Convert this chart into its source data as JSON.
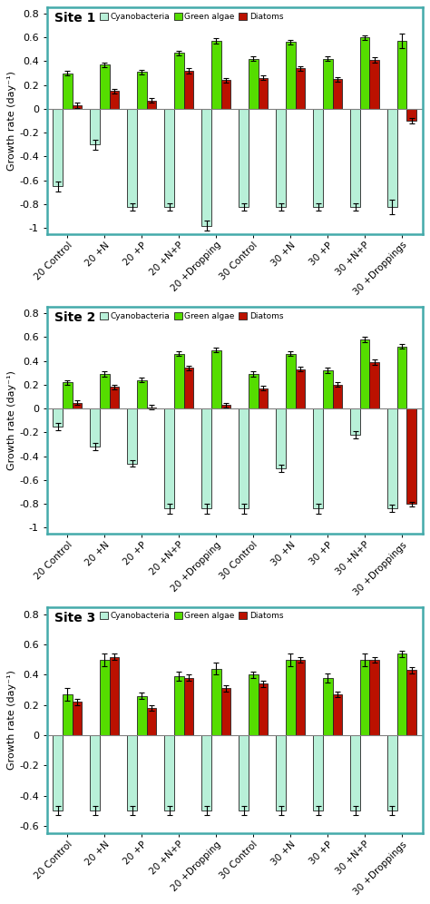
{
  "categories": [
    "20 Control",
    "20 +N",
    "20 +P",
    "20 +N+P",
    "20 +Dropping",
    "30 Control",
    "30 +N",
    "30 +P",
    "30 +N+P",
    "30 +Droppings"
  ],
  "sites": [
    "Site 1",
    "Site 2",
    "Site 3"
  ],
  "colors": {
    "cyano": "#b8f0d8",
    "green": "#55dd00",
    "diatom": "#bb1100"
  },
  "site1": {
    "cyano": [
      -0.65,
      -0.3,
      -0.82,
      -0.82,
      -0.98,
      -0.82,
      -0.82,
      -0.82,
      -0.82,
      -0.82
    ],
    "green": [
      0.3,
      0.37,
      0.31,
      0.47,
      0.57,
      0.42,
      0.56,
      0.42,
      0.6,
      0.57
    ],
    "diatom": [
      0.03,
      0.15,
      0.07,
      0.32,
      0.24,
      0.26,
      0.34,
      0.25,
      0.41,
      -0.1
    ],
    "cyano_err": [
      0.04,
      0.04,
      0.03,
      0.03,
      0.04,
      0.03,
      0.03,
      0.03,
      0.03,
      0.06
    ],
    "green_err": [
      0.02,
      0.02,
      0.02,
      0.02,
      0.02,
      0.02,
      0.02,
      0.02,
      0.02,
      0.06
    ],
    "diatom_err": [
      0.02,
      0.02,
      0.02,
      0.02,
      0.02,
      0.02,
      0.02,
      0.02,
      0.02,
      0.02
    ],
    "ylim": [
      -1.05,
      0.85
    ],
    "yticks": [
      -1.0,
      -0.8,
      -0.6,
      -0.4,
      -0.2,
      0.0,
      0.2,
      0.4,
      0.6,
      0.8
    ]
  },
  "site2": {
    "cyano": [
      -0.15,
      -0.32,
      -0.46,
      -0.84,
      -0.84,
      -0.84,
      -0.5,
      -0.84,
      -0.22,
      -0.84
    ],
    "green": [
      0.22,
      0.29,
      0.24,
      0.46,
      0.49,
      0.29,
      0.46,
      0.32,
      0.58,
      0.52
    ],
    "diatom": [
      0.05,
      0.18,
      0.01,
      0.34,
      0.03,
      0.17,
      0.33,
      0.2,
      0.39,
      -0.8
    ],
    "cyano_err": [
      0.03,
      0.03,
      0.03,
      0.04,
      0.04,
      0.04,
      0.03,
      0.04,
      0.03,
      0.03
    ],
    "green_err": [
      0.02,
      0.02,
      0.02,
      0.02,
      0.02,
      0.02,
      0.02,
      0.02,
      0.02,
      0.02
    ],
    "diatom_err": [
      0.02,
      0.02,
      0.02,
      0.02,
      0.02,
      0.02,
      0.02,
      0.02,
      0.02,
      0.02
    ],
    "ylim": [
      -1.05,
      0.85
    ],
    "yticks": [
      -1.0,
      -0.8,
      -0.6,
      -0.4,
      -0.2,
      0.0,
      0.2,
      0.4,
      0.6,
      0.8
    ]
  },
  "site3": {
    "cyano": [
      -0.5,
      -0.5,
      -0.5,
      -0.5,
      -0.5,
      -0.5,
      -0.5,
      -0.5,
      -0.5,
      -0.5
    ],
    "green": [
      0.27,
      0.5,
      0.26,
      0.39,
      0.44,
      0.4,
      0.5,
      0.38,
      0.5,
      0.54
    ],
    "diatom": [
      0.22,
      0.52,
      0.18,
      0.38,
      0.31,
      0.34,
      0.5,
      0.27,
      0.5,
      0.43
    ],
    "cyano_err": [
      0.03,
      0.03,
      0.03,
      0.03,
      0.03,
      0.03,
      0.03,
      0.03,
      0.03,
      0.03
    ],
    "green_err": [
      0.04,
      0.04,
      0.02,
      0.03,
      0.04,
      0.02,
      0.04,
      0.03,
      0.04,
      0.02
    ],
    "diatom_err": [
      0.02,
      0.02,
      0.02,
      0.02,
      0.02,
      0.02,
      0.02,
      0.02,
      0.02,
      0.02
    ],
    "ylim": [
      -0.65,
      0.85
    ],
    "yticks": [
      -0.6,
      -0.4,
      -0.2,
      0.0,
      0.2,
      0.4,
      0.6,
      0.8
    ]
  },
  "ylabel": "Growth rate (day⁻¹)",
  "legend_labels": [
    "Cyanobacteria",
    "Green algae",
    "Diatoms"
  ],
  "bar_width": 0.26,
  "edgecolor": "#222222",
  "spine_color": "#44aaaa",
  "spine_lw": 1.8
}
